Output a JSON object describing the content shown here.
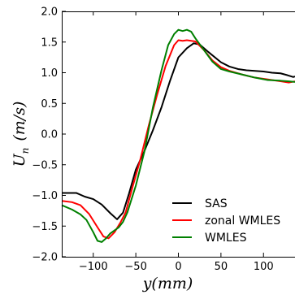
{
  "chart_data": {
    "type": "line",
    "xlabel": "y(mm)",
    "ylabel": "U_n (m/s)",
    "ylabel_parts": {
      "main": "U",
      "sub": "n",
      "unit": "(m/s)"
    },
    "xlim": [
      -137,
      137
    ],
    "ylim": [
      -2.0,
      2.0
    ],
    "x_ticks": [
      -100,
      -50,
      0,
      50,
      100
    ],
    "x_tick_labels": [
      "−100",
      "−50",
      "0",
      "50",
      "100"
    ],
    "y_ticks": [
      -2.0,
      -1.5,
      -1.0,
      -0.5,
      0.0,
      0.5,
      1.0,
      1.5,
      2.0
    ],
    "y_tick_labels": [
      "−2.0",
      "−1.5",
      "−1.0",
      "−0.5",
      "0.0",
      "0.5",
      "1.0",
      "1.5",
      "2.0"
    ],
    "grid": false,
    "legend_position": "lower-right",
    "series": [
      {
        "name": "SAS",
        "color": "#000000",
        "x": [
          -137,
          -125,
          -120,
          -110,
          -100,
          -90,
          -80,
          -72,
          -65,
          -58,
          -50,
          -40,
          -30,
          -20,
          -10,
          0,
          10,
          18,
          25,
          35,
          50,
          60,
          70,
          80,
          90,
          100,
          110,
          120,
          128,
          135,
          137
        ],
        "y": [
          -0.96,
          -0.96,
          -0.96,
          -1.02,
          -1.06,
          -1.15,
          -1.29,
          -1.39,
          -1.28,
          -0.97,
          -0.58,
          -0.28,
          0.06,
          0.43,
          0.86,
          1.25,
          1.4,
          1.48,
          1.46,
          1.34,
          1.17,
          1.1,
          1.06,
          1.04,
          1.03,
          1.02,
          1.0,
          0.99,
          0.96,
          0.93,
          0.94
        ]
      },
      {
        "name": "zonal WMLES",
        "color": "#ff0000",
        "x": [
          -137,
          -125,
          -115,
          -105,
          -95,
          -88,
          -82,
          -75,
          -68,
          -62,
          -55,
          -45,
          -35,
          -25,
          -15,
          -5,
          0,
          5,
          10,
          15,
          20,
          30,
          40,
          50,
          60,
          75,
          90,
          105,
          120,
          130,
          137
        ],
        "y": [
          -1.09,
          -1.11,
          -1.16,
          -1.3,
          -1.52,
          -1.67,
          -1.7,
          -1.6,
          -1.44,
          -1.28,
          -0.92,
          -0.43,
          0.13,
          0.64,
          1.11,
          1.45,
          1.53,
          1.52,
          1.53,
          1.52,
          1.51,
          1.37,
          1.2,
          1.09,
          1.03,
          0.97,
          0.92,
          0.89,
          0.86,
          0.84,
          0.86
        ]
      },
      {
        "name": "WMLES",
        "color": "#008000",
        "x": [
          -137,
          -125,
          -115,
          -108,
          -100,
          -95,
          -90,
          -85,
          -80,
          -75,
          -70,
          -65,
          -60,
          -50,
          -40,
          -30,
          -20,
          -12,
          -5,
          0,
          5,
          10,
          15,
          20,
          30,
          40,
          50,
          60,
          75,
          90,
          105,
          120,
          130,
          137
        ],
        "y": [
          -1.16,
          -1.23,
          -1.31,
          -1.4,
          -1.6,
          -1.74,
          -1.76,
          -1.7,
          -1.62,
          -1.57,
          -1.52,
          -1.43,
          -1.28,
          -0.84,
          -0.29,
          0.43,
          1.03,
          1.45,
          1.63,
          1.7,
          1.68,
          1.7,
          1.67,
          1.56,
          1.37,
          1.18,
          1.06,
          1.02,
          0.97,
          0.92,
          0.88,
          0.87,
          0.86,
          0.85
        ]
      }
    ]
  }
}
